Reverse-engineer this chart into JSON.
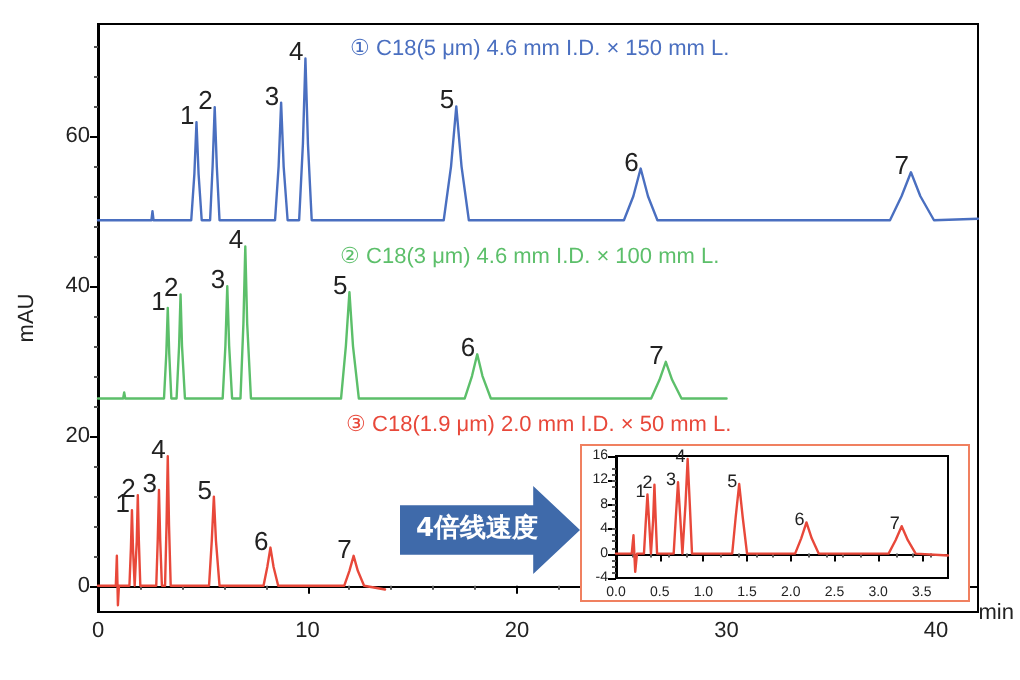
{
  "chart_data": [
    {
      "type": "line",
      "xlabel": "min",
      "ylabel": "mAU",
      "xlim": [
        0,
        42
      ],
      "xticks": [
        0,
        10,
        20,
        30,
        40
      ],
      "ylim": [
        -3.5,
        75
      ],
      "yticks": [
        0,
        20,
        40,
        60
      ],
      "marker": "none",
      "series": [
        {
          "name": "① C18(5 μm) 4.6 mm I.D. × 150 mm L.",
          "color": "#4a6fc0",
          "x": [
            0,
            2.55,
            2.6,
            2.65,
            4.45,
            4.6,
            4.7,
            4.8,
            4.95,
            5.35,
            5.47,
            5.57,
            5.67,
            5.8,
            8.45,
            8.62,
            8.74,
            8.86,
            9.05,
            9.6,
            9.78,
            9.9,
            10.02,
            10.2,
            16.5,
            16.85,
            17.1,
            17.35,
            17.7,
            25.1,
            25.55,
            25.9,
            26.25,
            26.7,
            37.8,
            38.35,
            38.8,
            39.25,
            39.9,
            42
          ],
          "values": [
            48.8,
            48.8,
            50,
            48.8,
            48.8,
            55,
            61.9,
            55,
            48.8,
            48.8,
            56,
            63.9,
            56,
            48.8,
            48.8,
            56,
            64.5,
            56,
            48.8,
            48.8,
            59,
            70.4,
            59,
            48.8,
            48.8,
            56,
            64,
            56,
            48.8,
            48.8,
            52,
            55.7,
            52,
            48.8,
            48.8,
            52,
            55.2,
            52,
            48.8,
            49
          ]
        },
        {
          "name": "② C18(3 μm) 4.6 mm I.D. × 100 mm L.",
          "color": "#5cbf6a",
          "x": [
            0,
            1.2,
            1.25,
            1.3,
            3.15,
            3.26,
            3.33,
            3.4,
            3.5,
            3.75,
            3.87,
            3.94,
            4.01,
            4.15,
            5.95,
            6.08,
            6.17,
            6.26,
            6.4,
            6.8,
            6.94,
            7.03,
            7.12,
            7.3,
            11.6,
            11.83,
            12,
            12.17,
            12.45,
            17.5,
            17.85,
            18.1,
            18.35,
            18.75,
            26.4,
            26.8,
            27.1,
            27.4,
            27.85,
            30
          ],
          "values": [
            25,
            25,
            25.8,
            25,
            25,
            31,
            37.1,
            31,
            25,
            25,
            32,
            38.9,
            32,
            25,
            25,
            32,
            40,
            32,
            25,
            25,
            35,
            45.3,
            35,
            25,
            25,
            32,
            39.2,
            32,
            25,
            25,
            28,
            30.9,
            28,
            25,
            25,
            27.5,
            29.9,
            27.5,
            25,
            25
          ]
        },
        {
          "name": "③ C18(1.9 μm) 2.0 mm I.D. × 50 mm L.",
          "color": "#e8483a",
          "x": [
            0,
            0.85,
            0.9,
            0.95,
            1.0,
            1.5,
            1.57,
            1.62,
            1.67,
            1.75,
            1.8,
            1.85,
            1.9,
            1.95,
            2.02,
            2.78,
            2.85,
            2.91,
            2.97,
            3.05,
            3.2,
            3.27,
            3.33,
            3.39,
            3.47,
            5.3,
            5.43,
            5.53,
            5.63,
            5.8,
            7.9,
            8.08,
            8.23,
            8.38,
            8.6,
            11.75,
            12,
            12.2,
            12.4,
            12.7,
            13.7
          ],
          "values": [
            0,
            0,
            4,
            -2.6,
            0,
            0,
            5,
            10.1,
            5,
            0,
            0,
            6,
            12.1,
            6,
            0,
            0,
            6,
            12.8,
            6,
            0,
            0,
            8,
            17.3,
            8,
            0,
            0,
            6,
            11.9,
            6,
            0,
            0,
            2.5,
            5.1,
            2.5,
            0,
            0,
            2,
            4,
            2,
            0,
            -0.5
          ]
        }
      ],
      "annotations": [
        {
          "text": "1",
          "x": 4.7,
          "y": 61.9
        },
        {
          "text": "2",
          "x": 5.57,
          "y": 63.9
        },
        {
          "text": "3",
          "x": 8.74,
          "y": 64.5
        },
        {
          "text": "4",
          "x": 9.9,
          "y": 70.4
        },
        {
          "text": "5",
          "x": 17.1,
          "y": 64
        },
        {
          "text": "6",
          "x": 25.9,
          "y": 55.7
        },
        {
          "text": "7",
          "x": 38.8,
          "y": 55.2
        },
        {
          "text": "1",
          "x": 3.33,
          "y": 37.1
        },
        {
          "text": "2",
          "x": 3.94,
          "y": 38.9
        },
        {
          "text": "3",
          "x": 6.17,
          "y": 40
        },
        {
          "text": "4",
          "x": 7.03,
          "y": 45.3
        },
        {
          "text": "5",
          "x": 12,
          "y": 39.2
        },
        {
          "text": "6",
          "x": 18.1,
          "y": 30.9
        },
        {
          "text": "7",
          "x": 27.1,
          "y": 29.9
        },
        {
          "text": "1",
          "x": 1.62,
          "y": 10.1
        },
        {
          "text": "2",
          "x": 1.9,
          "y": 12.1
        },
        {
          "text": "3",
          "x": 2.91,
          "y": 12.8
        },
        {
          "text": "4",
          "x": 3.33,
          "y": 17.3
        },
        {
          "text": "5",
          "x": 5.53,
          "y": 11.9
        },
        {
          "text": "6",
          "x": 8.23,
          "y": 5.1
        },
        {
          "text": "7",
          "x": 12.2,
          "y": 4
        },
        "4倍线速度"
      ]
    },
    {
      "type": "line",
      "xlim": [
        0,
        3.8
      ],
      "xticks": [
        {
          "value": 0,
          "label": "0.0"
        },
        0.5,
        {
          "value": 1,
          "label": "1.0"
        },
        1.5,
        {
          "value": 2,
          "label": "2.0"
        },
        2.5,
        {
          "value": 3,
          "label": "3.0"
        },
        3.5
      ],
      "ylim": [
        -4,
        16
      ],
      "yticks": [
        -4,
        0,
        4,
        8,
        12,
        16
      ],
      "marker": "none",
      "series": [
        {
          "color": "#e8483a",
          "x": [
            0,
            0.18,
            0.2,
            0.22,
            0.24,
            0.32,
            0.34,
            0.36,
            0.38,
            0.4,
            0.41,
            0.425,
            0.44,
            0.455,
            0.47,
            0.66,
            0.685,
            0.71,
            0.735,
            0.76,
            0.77,
            0.795,
            0.82,
            0.845,
            0.87,
            1.33,
            1.37,
            1.41,
            1.45,
            1.5,
            2.05,
            2.12,
            2.18,
            2.24,
            2.32,
            3.12,
            3.2,
            3.27,
            3.34,
            3.43,
            3.8
          ],
          "values": [
            0,
            0,
            3,
            -3,
            0,
            0,
            5,
            9.7,
            5,
            0,
            0,
            5.5,
            11.3,
            5.5,
            0,
            0,
            6,
            11.7,
            6,
            0,
            0,
            8,
            15.5,
            8,
            0,
            0,
            6,
            11.4,
            6,
            0,
            0,
            2.5,
            5.1,
            2.5,
            0,
            0,
            2.2,
            4.5,
            2.2,
            0,
            -0.3
          ]
        }
      ],
      "annotations": [
        {
          "text": "1",
          "x": 0.36,
          "y": 9.7
        },
        {
          "text": "2",
          "x": 0.44,
          "y": 11.3
        },
        {
          "text": "3",
          "x": 0.71,
          "y": 11.7
        },
        {
          "text": "4",
          "x": 0.82,
          "y": 15.5
        },
        {
          "text": "5",
          "x": 1.41,
          "y": 11.4
        },
        {
          "text": "6",
          "x": 2.18,
          "y": 5.1
        },
        {
          "text": "7",
          "x": 3.27,
          "y": 4.5
        }
      ]
    }
  ]
}
